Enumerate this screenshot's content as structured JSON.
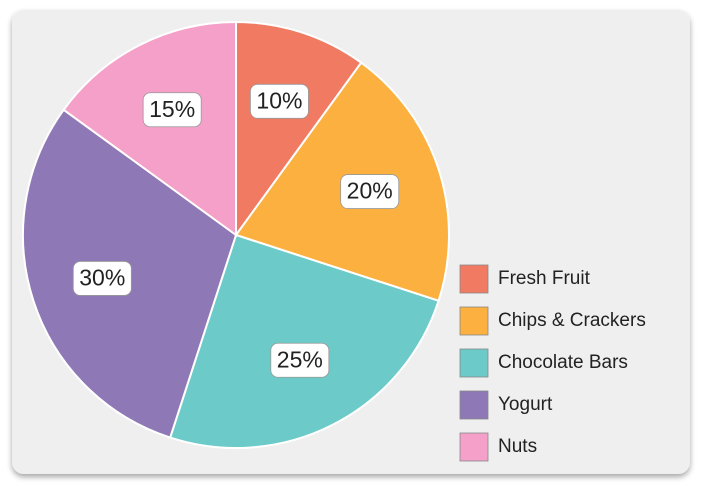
{
  "chart_data": {
    "type": "pie",
    "categories": [
      "Fresh Fruit",
      "Chips & Crackers",
      "Chocolate Bars",
      "Yogurt",
      "Nuts"
    ],
    "values": [
      10,
      20,
      25,
      30,
      15
    ],
    "value_labels": [
      "10%",
      "20%",
      "25%",
      "30%",
      "15%"
    ],
    "colors": [
      "#f07a62",
      "#fbb040",
      "#6ccac9",
      "#8e78b6",
      "#f4a0c8"
    ],
    "legend": "bottom-right"
  }
}
